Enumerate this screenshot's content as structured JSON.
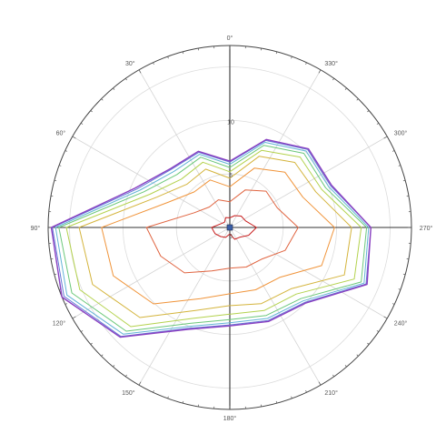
{
  "chart_data": {
    "type": "polar-line",
    "angle_direction": "counterclockwise",
    "zero_direction": "top",
    "angular_ticks": [
      "0°",
      "30°",
      "60°",
      "90°",
      "120°",
      "150°",
      "180°",
      "210°",
      "240°",
      "270°",
      "300°",
      "330°"
    ],
    "radial_ticks": [
      "0",
      "5",
      "10"
    ],
    "rlim": [
      0,
      17
    ],
    "grid": true,
    "angles_deg": [
      0,
      22.5,
      45,
      67.5,
      90,
      112.5,
      135,
      157.5,
      180,
      202.5,
      225,
      247.5,
      270,
      292.5,
      315,
      337.5
    ],
    "series": [
      {
        "color": "#c81e1e",
        "values": [
          0.9,
          1.0,
          0.7,
          0.9,
          1.7,
          1.5,
          1.2,
          1.0,
          0.6,
          1.2,
          1.3,
          1.9,
          2.5,
          1.6,
          1.5,
          1.2
        ]
      },
      {
        "color": "#e06440",
        "values": [
          2.4,
          2.8,
          2.7,
          3.6,
          7.8,
          7.0,
          6.0,
          4.4,
          3.8,
          4.0,
          4.2,
          5.6,
          6.4,
          4.8,
          4.8,
          3.8
        ]
      },
      {
        "color": "#f0943a",
        "values": [
          3.8,
          4.8,
          4.7,
          6.2,
          12.0,
          11.8,
          10.1,
          7.2,
          6.2,
          6.3,
          6.6,
          9.3,
          9.8,
          7.4,
          7.3,
          6.0
        ]
      },
      {
        "color": "#d4b43c",
        "values": [
          4.6,
          5.9,
          5.7,
          7.4,
          14.1,
          13.9,
          11.9,
          8.4,
          7.3,
          7.7,
          8.1,
          11.6,
          11.4,
          8.7,
          8.6,
          7.2
        ]
      },
      {
        "color": "#b4d24e",
        "values": [
          5.2,
          6.6,
          6.4,
          8.1,
          15.3,
          15.2,
          13.1,
          9.2,
          8.1,
          8.4,
          8.8,
          12.6,
          12.3,
          9.3,
          9.3,
          7.8
        ]
      },
      {
        "color": "#6cc87a",
        "values": [
          5.6,
          7.1,
          7.0,
          8.7,
          16.0,
          16.0,
          13.7,
          9.7,
          8.6,
          8.9,
          9.4,
          13.3,
          12.8,
          9.7,
          9.8,
          8.3
        ]
      },
      {
        "color": "#62b4d6",
        "values": [
          5.9,
          7.4,
          7.4,
          9.1,
          16.3,
          16.5,
          14.1,
          10.0,
          8.9,
          9.2,
          9.7,
          13.6,
          13.0,
          10.0,
          10.1,
          8.6
        ]
      },
      {
        "color": "#6478d8",
        "values": [
          6.1,
          7.6,
          7.7,
          9.4,
          16.6,
          16.8,
          14.4,
          10.2,
          9.1,
          9.4,
          9.9,
          13.8,
          13.2,
          10.2,
          10.3,
          8.8
        ]
      },
      {
        "color": "#8a40c0",
        "values": [
          6.2,
          7.7,
          7.8,
          9.6,
          16.7,
          17.0,
          14.5,
          10.3,
          9.2,
          9.5,
          10.0,
          13.9,
          13.2,
          10.3,
          10.4,
          8.9
        ]
      }
    ]
  }
}
